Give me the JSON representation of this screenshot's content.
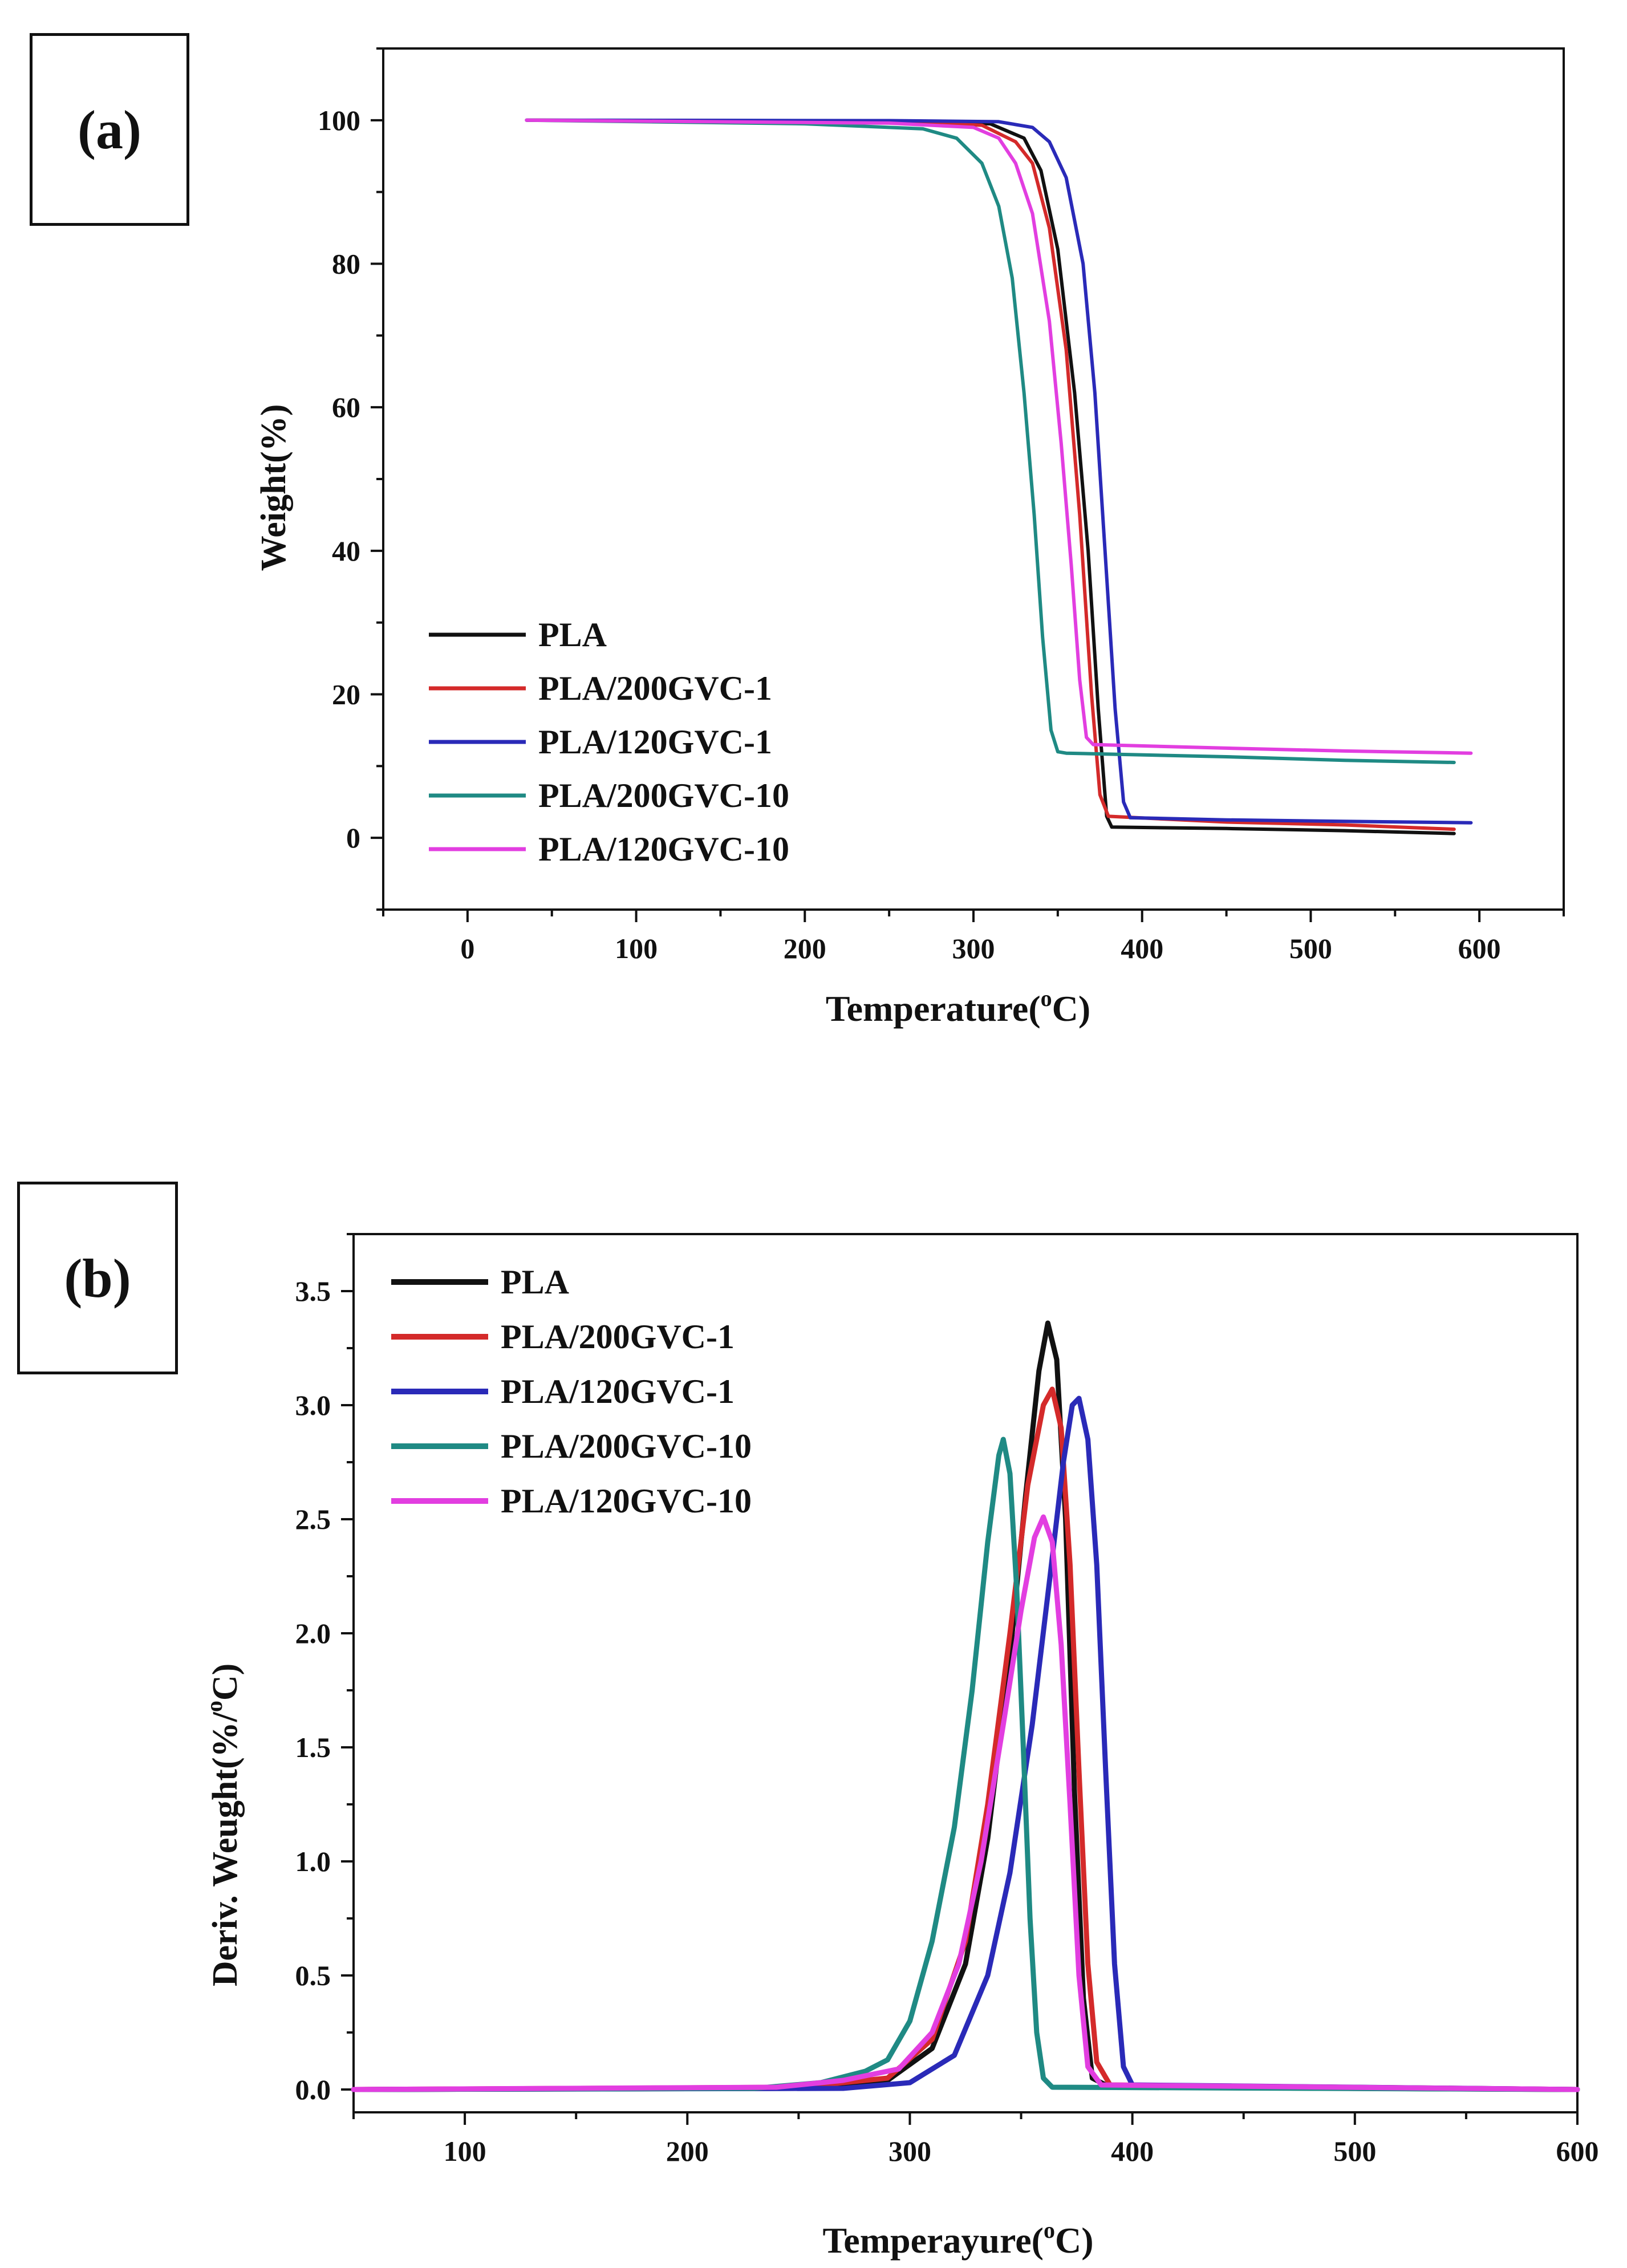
{
  "charts": [
    {
      "panel_label": "(a)",
      "chart_data": {
        "type": "line",
        "xlabel": "Temperature(",
        "xlabel_sup": "o",
        "xlabel_tail": "C)",
        "ylabel": "Weight(%)",
        "xlim": [
          -50,
          650
        ],
        "ylim": [
          -10,
          110
        ],
        "xticks": [
          0,
          100,
          200,
          300,
          400,
          500,
          600
        ],
        "yticks": [
          0,
          20,
          40,
          60,
          80,
          100
        ],
        "grid": false,
        "legend_position": "bottom-left",
        "series": [
          {
            "name": "PLA",
            "color": "#111111",
            "points": [
              [
                35,
                100
              ],
              [
                250,
                99.9
              ],
              [
                310,
                99.5
              ],
              [
                330,
                97.5
              ],
              [
                340,
                93
              ],
              [
                350,
                82
              ],
              [
                360,
                62
              ],
              [
                368,
                40
              ],
              [
                374,
                18
              ],
              [
                379,
                3
              ],
              [
                382,
                1.5
              ],
              [
                450,
                1.3
              ],
              [
                520,
                1.0
              ],
              [
                585,
                0.6
              ]
            ]
          },
          {
            "name": "PLA/200GVC-1",
            "color": "#d42a2a",
            "points": [
              [
                35,
                100
              ],
              [
                250,
                99.8
              ],
              [
                305,
                99.3
              ],
              [
                325,
                97
              ],
              [
                335,
                94
              ],
              [
                345,
                85
              ],
              [
                355,
                68
              ],
              [
                363,
                45
              ],
              [
                370,
                20
              ],
              [
                375,
                6
              ],
              [
                380,
                3
              ],
              [
                450,
                2.2
              ],
              [
                520,
                1.8
              ],
              [
                585,
                1.2
              ]
            ]
          },
          {
            "name": "PLA/120GVC-1",
            "color": "#2a2ab8",
            "points": [
              [
                35,
                100
              ],
              [
                250,
                99.95
              ],
              [
                315,
                99.8
              ],
              [
                335,
                99
              ],
              [
                345,
                97
              ],
              [
                355,
                92
              ],
              [
                365,
                80
              ],
              [
                372,
                62
              ],
              [
                378,
                40
              ],
              [
                384,
                18
              ],
              [
                389,
                5
              ],
              [
                393,
                2.8
              ],
              [
                450,
                2.5
              ],
              [
                520,
                2.3
              ],
              [
                595,
                2.1
              ]
            ]
          },
          {
            "name": "PLA/200GVC-10",
            "color": "#1f8a84",
            "points": [
              [
                35,
                100
              ],
              [
                200,
                99.5
              ],
              [
                270,
                98.8
              ],
              [
                290,
                97.5
              ],
              [
                305,
                94
              ],
              [
                315,
                88
              ],
              [
                323,
                78
              ],
              [
                330,
                62
              ],
              [
                336,
                45
              ],
              [
                341,
                28
              ],
              [
                346,
                15
              ],
              [
                350,
                12
              ],
              [
                355,
                11.8
              ],
              [
                450,
                11.3
              ],
              [
                520,
                10.8
              ],
              [
                585,
                10.5
              ]
            ]
          },
          {
            "name": "PLA/120GVC-10",
            "color": "#e23ee0",
            "points": [
              [
                35,
                100
              ],
              [
                250,
                99.6
              ],
              [
                300,
                99
              ],
              [
                315,
                97.5
              ],
              [
                325,
                94
              ],
              [
                335,
                87
              ],
              [
                345,
                72
              ],
              [
                352,
                55
              ],
              [
                358,
                38
              ],
              [
                363,
                22
              ],
              [
                367,
                14
              ],
              [
                371,
                13
              ],
              [
                450,
                12.5
              ],
              [
                520,
                12.1
              ],
              [
                595,
                11.8
              ]
            ]
          }
        ]
      }
    },
    {
      "panel_label": "(b)",
      "chart_data": {
        "type": "line",
        "xlabel": "Temperayure(",
        "xlabel_sup": "o",
        "xlabel_tail": "C)",
        "ylabel": "Deriv. Weught(%/",
        "ylabel_sup": "o",
        "ylabel_tail": "C)",
        "xlim": [
          50,
          600
        ],
        "ylim": [
          -0.1,
          3.75
        ],
        "xticks": [
          100,
          200,
          300,
          400,
          500,
          600
        ],
        "yticks": [
          0.0,
          0.5,
          1.0,
          1.5,
          2.0,
          2.5,
          3.0,
          3.5
        ],
        "grid": false,
        "legend_position": "top-left",
        "series": [
          {
            "name": "PLA",
            "color": "#111111",
            "points": [
              [
                50,
                0
              ],
              [
                250,
                0.005
              ],
              [
                290,
                0.04
              ],
              [
                310,
                0.18
              ],
              [
                325,
                0.55
              ],
              [
                335,
                1.1
              ],
              [
                345,
                1.9
              ],
              [
                352,
                2.6
              ],
              [
                358,
                3.15
              ],
              [
                362,
                3.36
              ],
              [
                366,
                3.2
              ],
              [
                370,
                2.5
              ],
              [
                374,
                1.3
              ],
              [
                378,
                0.4
              ],
              [
                382,
                0.05
              ],
              [
                390,
                0.01
              ],
              [
                600,
                0
              ]
            ]
          },
          {
            "name": "PLA/200GVC-1",
            "color": "#d42a2a",
            "points": [
              [
                50,
                0
              ],
              [
                250,
                0.01
              ],
              [
                290,
                0.05
              ],
              [
                310,
                0.22
              ],
              [
                325,
                0.65
              ],
              [
                335,
                1.25
              ],
              [
                345,
                2.0
              ],
              [
                353,
                2.65
              ],
              [
                360,
                3.0
              ],
              [
                364,
                3.07
              ],
              [
                368,
                2.9
              ],
              [
                372,
                2.3
              ],
              [
                376,
                1.4
              ],
              [
                380,
                0.55
              ],
              [
                384,
                0.12
              ],
              [
                390,
                0.02
              ],
              [
                600,
                0
              ]
            ]
          },
          {
            "name": "PLA/120GVC-1",
            "color": "#2a2ab8",
            "points": [
              [
                50,
                0
              ],
              [
                270,
                0.005
              ],
              [
                300,
                0.03
              ],
              [
                320,
                0.15
              ],
              [
                335,
                0.5
              ],
              [
                345,
                0.95
              ],
              [
                355,
                1.6
              ],
              [
                363,
                2.25
              ],
              [
                369,
                2.75
              ],
              [
                373,
                3.0
              ],
              [
                376,
                3.03
              ],
              [
                380,
                2.85
              ],
              [
                384,
                2.3
              ],
              [
                388,
                1.4
              ],
              [
                392,
                0.55
              ],
              [
                396,
                0.1
              ],
              [
                400,
                0.02
              ],
              [
                600,
                0
              ]
            ]
          },
          {
            "name": "PLA/200GVC-10",
            "color": "#1f8a84",
            "points": [
              [
                50,
                0
              ],
              [
                230,
                0.005
              ],
              [
                260,
                0.03
              ],
              [
                280,
                0.08
              ],
              [
                290,
                0.13
              ],
              [
                300,
                0.3
              ],
              [
                310,
                0.65
              ],
              [
                320,
                1.15
              ],
              [
                328,
                1.75
              ],
              [
                335,
                2.4
              ],
              [
                340,
                2.78
              ],
              [
                342,
                2.85
              ],
              [
                345,
                2.7
              ],
              [
                348,
                2.2
              ],
              [
                351,
                1.5
              ],
              [
                354,
                0.75
              ],
              [
                357,
                0.25
              ],
              [
                360,
                0.05
              ],
              [
                364,
                0.01
              ],
              [
                600,
                0
              ]
            ]
          },
          {
            "name": "PLA/120GVC-10",
            "color": "#e23ee0",
            "points": [
              [
                50,
                0
              ],
              [
                240,
                0.01
              ],
              [
                270,
                0.04
              ],
              [
                295,
                0.09
              ],
              [
                310,
                0.25
              ],
              [
                322,
                0.55
              ],
              [
                332,
                1.0
              ],
              [
                342,
                1.6
              ],
              [
                350,
                2.1
              ],
              [
                356,
                2.42
              ],
              [
                360,
                2.51
              ],
              [
                364,
                2.4
              ],
              [
                368,
                1.95
              ],
              [
                372,
                1.25
              ],
              [
                376,
                0.5
              ],
              [
                380,
                0.1
              ],
              [
                386,
                0.02
              ],
              [
                600,
                0
              ]
            ]
          }
        ]
      }
    }
  ]
}
